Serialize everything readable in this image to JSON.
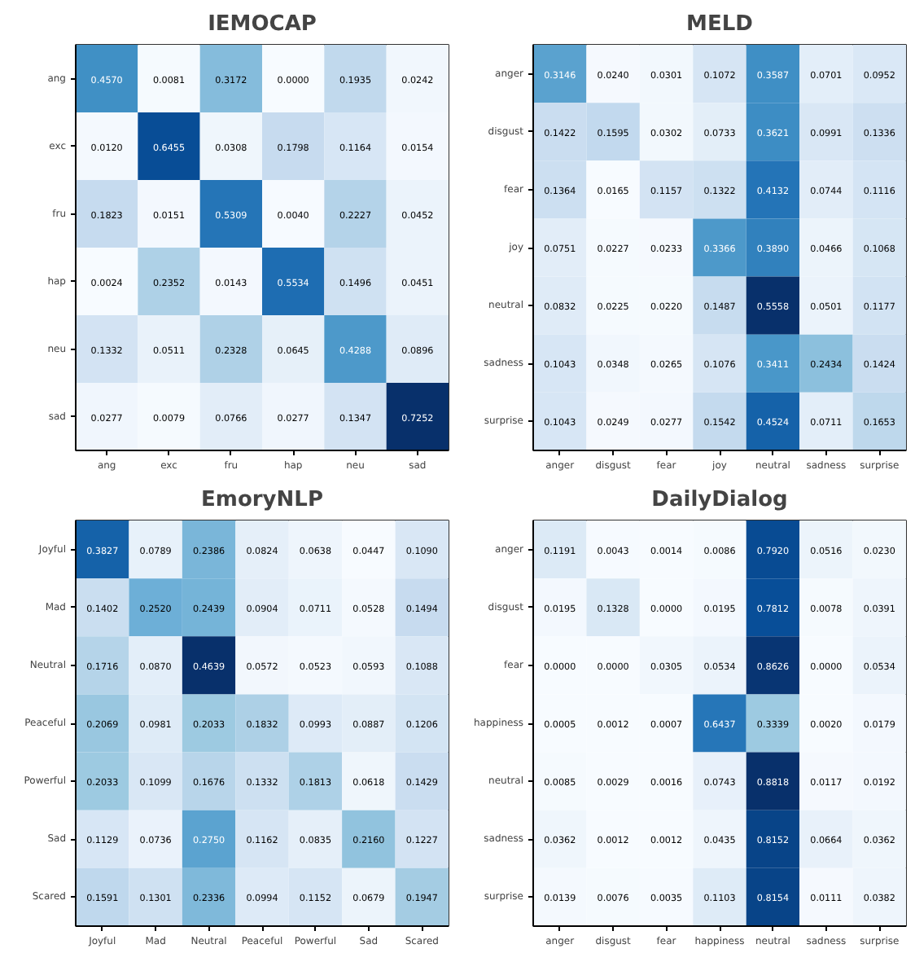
{
  "chart_data": [
    {
      "type": "heatmap",
      "title": "IEMOCAP",
      "categories": [
        "ang",
        "exc",
        "fru",
        "hap",
        "neu",
        "sad"
      ],
      "y_categories": [
        "ang",
        "exc",
        "fru",
        "hap",
        "neu",
        "sad"
      ],
      "cells": [
        [
          0.457,
          0.0081,
          0.3172,
          0.0,
          0.1935,
          0.0242
        ],
        [
          0.012,
          0.6455,
          0.0308,
          0.1798,
          0.1164,
          0.0154
        ],
        [
          0.1823,
          0.0151,
          0.5309,
          0.004,
          0.2227,
          0.0452
        ],
        [
          0.0024,
          0.2352,
          0.0143,
          0.5534,
          0.1496,
          0.0451
        ],
        [
          0.1332,
          0.0511,
          0.2328,
          0.0645,
          0.4288,
          0.0896
        ],
        [
          0.0277,
          0.0079,
          0.0766,
          0.0277,
          0.1347,
          0.7252
        ]
      ],
      "cell_labels": [
        [
          "0.4570",
          "0.0081",
          "0.3172",
          "0.0000",
          "0.1935",
          "0.0242"
        ],
        [
          "0.0120",
          "0.6455",
          "0.0308",
          "0.1798",
          "0.1164",
          "0.0154"
        ],
        [
          "0.1823",
          "0.0151",
          "0.5309",
          "0.0040",
          "0.2227",
          "0.0452"
        ],
        [
          "0.0024",
          "0.2352",
          "0.0143",
          "0.5534",
          "0.1496",
          "0.0451"
        ],
        [
          "0.1332",
          "0.0511",
          "0.2328",
          "0.0645",
          "0.4288",
          "0.0896"
        ],
        [
          "0.0277",
          "0.0079",
          "0.0766",
          "0.0277",
          "0.1347",
          "0.7252"
        ]
      ]
    },
    {
      "type": "heatmap",
      "title": "MELD",
      "categories": [
        "anger",
        "disgust",
        "fear",
        "joy",
        "neutral",
        "sadness",
        "surprise"
      ],
      "y_categories": [
        "anger",
        "disgust",
        "fear",
        "joy",
        "neutral",
        "sadness",
        "surprise"
      ],
      "cells": [
        [
          0.3146,
          0.024,
          0.0301,
          0.1072,
          0.3587,
          0.0701,
          0.0952
        ],
        [
          0.1422,
          0.1595,
          0.0302,
          0.0733,
          0.3621,
          0.0991,
          0.1336
        ],
        [
          0.1364,
          0.0165,
          0.1157,
          0.1322,
          0.4132,
          0.0744,
          0.1116
        ],
        [
          0.0751,
          0.0227,
          0.0233,
          0.3366,
          0.389,
          0.0466,
          0.1068
        ],
        [
          0.0832,
          0.0225,
          0.022,
          0.1487,
          0.5558,
          0.0501,
          0.1177
        ],
        [
          0.1043,
          0.0348,
          0.0265,
          0.1076,
          0.3411,
          0.2434,
          0.1424
        ],
        [
          0.1043,
          0.0249,
          0.0277,
          0.1542,
          0.4524,
          0.0711,
          0.1653
        ]
      ],
      "cell_labels": [
        [
          "0.3146",
          "0.0240",
          "0.0301",
          "0.1072",
          "0.3587",
          "0.0701",
          "0.0952"
        ],
        [
          "0.1422",
          "0.1595",
          "0.0302",
          "0.0733",
          "0.3621",
          "0.0991",
          "0.1336"
        ],
        [
          "0.1364",
          "0.0165",
          "0.1157",
          "0.1322",
          "0.4132",
          "0.0744",
          "0.1116"
        ],
        [
          "0.0751",
          "0.0227",
          "0.0233",
          "0.3366",
          "0.3890",
          "0.0466",
          "0.1068"
        ],
        [
          "0.0832",
          "0.0225",
          "0.0220",
          "0.1487",
          "0.5558",
          "0.0501",
          "0.1177"
        ],
        [
          "0.1043",
          "0.0348",
          "0.0265",
          "0.1076",
          "0.3411",
          "0.2434",
          "0.1424"
        ],
        [
          "0.1043",
          "0.0249",
          "0.0277",
          "0.1542",
          "0.4524",
          "0.0711",
          "0.1653"
        ]
      ]
    },
    {
      "type": "heatmap",
      "title": "EmoryNLP",
      "categories": [
        "Joyful",
        "Mad",
        "Neutral",
        "Peaceful",
        "Powerful",
        "Sad",
        "Scared"
      ],
      "y_categories": [
        "Joyful",
        "Mad",
        "Neutral",
        "Peaceful",
        "Powerful",
        "Sad",
        "Scared"
      ],
      "cells": [
        [
          0.3827,
          0.0789,
          0.2386,
          0.0824,
          0.0638,
          0.0447,
          0.109
        ],
        [
          0.1402,
          0.252,
          0.2439,
          0.0904,
          0.0711,
          0.0528,
          0.1494
        ],
        [
          0.1716,
          0.087,
          0.4639,
          0.0572,
          0.0523,
          0.0593,
          0.1088
        ],
        [
          0.2069,
          0.0981,
          0.2033,
          0.1832,
          0.0993,
          0.0887,
          0.1206
        ],
        [
          0.2033,
          0.1099,
          0.1676,
          0.1332,
          0.1813,
          0.0618,
          0.1429
        ],
        [
          0.1129,
          0.0736,
          0.275,
          0.1162,
          0.0835,
          0.216,
          0.1227
        ],
        [
          0.1591,
          0.1301,
          0.2336,
          0.0994,
          0.1152,
          0.0679,
          0.1947
        ]
      ],
      "cell_labels": [
        [
          "0.3827",
          "0.0789",
          "0.2386",
          "0.0824",
          "0.0638",
          "0.0447",
          "0.1090"
        ],
        [
          "0.1402",
          "0.2520",
          "0.2439",
          "0.0904",
          "0.0711",
          "0.0528",
          "0.1494"
        ],
        [
          "0.1716",
          "0.0870",
          "0.4639",
          "0.0572",
          "0.0523",
          "0.0593",
          "0.1088"
        ],
        [
          "0.2069",
          "0.0981",
          "0.2033",
          "0.1832",
          "0.0993",
          "0.0887",
          "0.1206"
        ],
        [
          "0.2033",
          "0.1099",
          "0.1676",
          "0.1332",
          "0.1813",
          "0.0618",
          "0.1429"
        ],
        [
          "0.1129",
          "0.0736",
          "0.2750",
          "0.1162",
          "0.0835",
          "0.2160",
          "0.1227"
        ],
        [
          "0.1591",
          "0.1301",
          "0.2336",
          "0.0994",
          "0.1152",
          "0.0679",
          "0.1947"
        ]
      ]
    },
    {
      "type": "heatmap",
      "title": "DailyDialog",
      "categories": [
        "anger",
        "disgust",
        "fear",
        "happiness",
        "neutral",
        "sadness",
        "surprise"
      ],
      "y_categories": [
        "anger",
        "disgust",
        "fear",
        "happiness",
        "neutral",
        "sadness",
        "surprise"
      ],
      "cells": [
        [
          0.1191,
          0.0043,
          0.0014,
          0.0086,
          0.792,
          0.0516,
          0.023
        ],
        [
          0.0195,
          0.1328,
          0.0,
          0.0195,
          0.7812,
          0.0078,
          0.0391
        ],
        [
          0.0,
          0.0,
          0.0305,
          0.0534,
          0.8626,
          0.0,
          0.0534
        ],
        [
          0.0005,
          0.0012,
          0.0007,
          0.6437,
          0.3339,
          0.002,
          0.0179
        ],
        [
          0.0085,
          0.0029,
          0.0016,
          0.0743,
          0.8818,
          0.0117,
          0.0192
        ],
        [
          0.0362,
          0.0012,
          0.0012,
          0.0435,
          0.8152,
          0.0664,
          0.0362
        ],
        [
          0.0139,
          0.0076,
          0.0035,
          0.1103,
          0.8154,
          0.0111,
          0.0382
        ]
      ],
      "cell_labels": [
        [
          "0.1191",
          "0.0043",
          "0.0014",
          "0.0086",
          "0.7920",
          "0.0516",
          "0.0230"
        ],
        [
          "0.0195",
          "0.1328",
          "0.0000",
          "0.0195",
          "0.7812",
          "0.0078",
          "0.0391"
        ],
        [
          "0.0000",
          "0.0000",
          "0.0305",
          "0.0534",
          "0.8626",
          "0.0000",
          "0.0534"
        ],
        [
          "0.0005",
          "0.0012",
          "0.0007",
          "0.6437",
          "0.3339",
          "0.0020",
          "0.0179"
        ],
        [
          "0.0085",
          "0.0029",
          "0.0016",
          "0.0743",
          "0.8818",
          "0.0117",
          "0.0192"
        ],
        [
          "0.0362",
          "0.0012",
          "0.0012",
          "0.0435",
          "0.8152",
          "0.0664",
          "0.0362"
        ],
        [
          "0.0139",
          "0.0076",
          "0.0035",
          "0.1103",
          "0.8154",
          "0.0111",
          "0.0382"
        ]
      ]
    }
  ]
}
